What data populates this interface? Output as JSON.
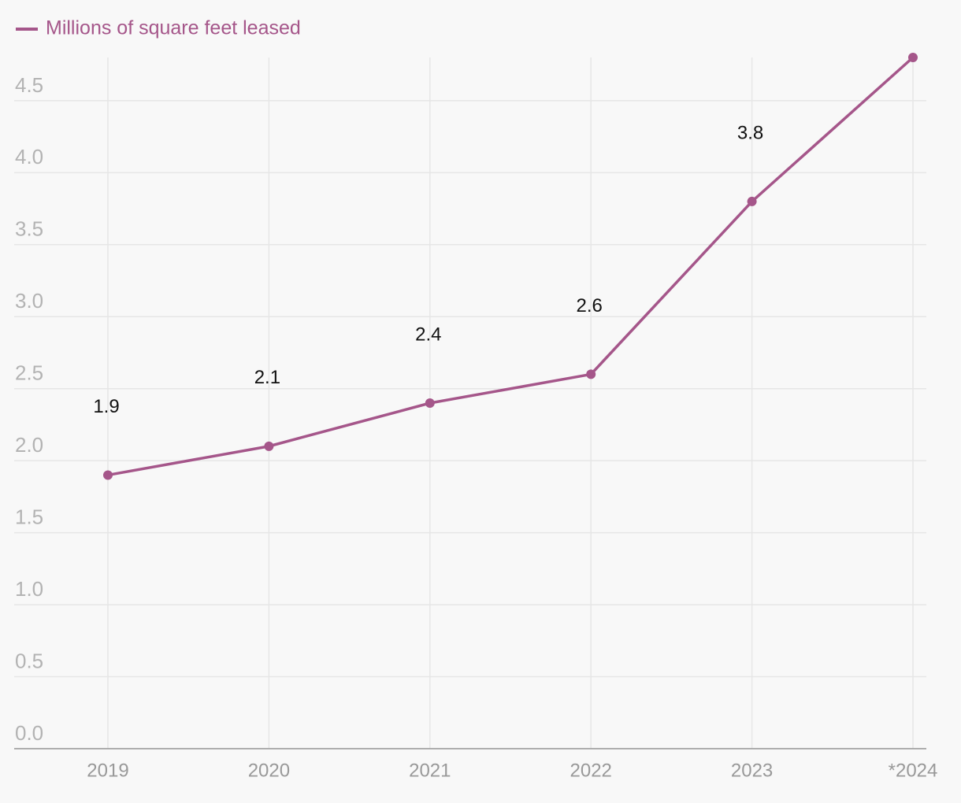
{
  "chart_data": {
    "type": "line",
    "categories": [
      "2019",
      "2020",
      "2021",
      "2022",
      "2023",
      "*2024"
    ],
    "series": [
      {
        "name": "Millions of square feet leased",
        "color": "#a5568a",
        "values": [
          1.9,
          2.1,
          2.4,
          2.6,
          3.8,
          4.8
        ]
      }
    ],
    "ylim": [
      0,
      4.8
    ],
    "yticks": [
      {
        "value": 0,
        "label": "0.0"
      },
      0.5,
      {
        "value": 1,
        "label": "1.0"
      },
      1.5,
      {
        "value": 2,
        "label": "2.0"
      },
      2.5,
      {
        "value": 3,
        "label": "3.0"
      },
      3.5,
      {
        "value": 4,
        "label": "4.0"
      },
      4.5
    ],
    "grid": true,
    "legend": "top-left"
  }
}
